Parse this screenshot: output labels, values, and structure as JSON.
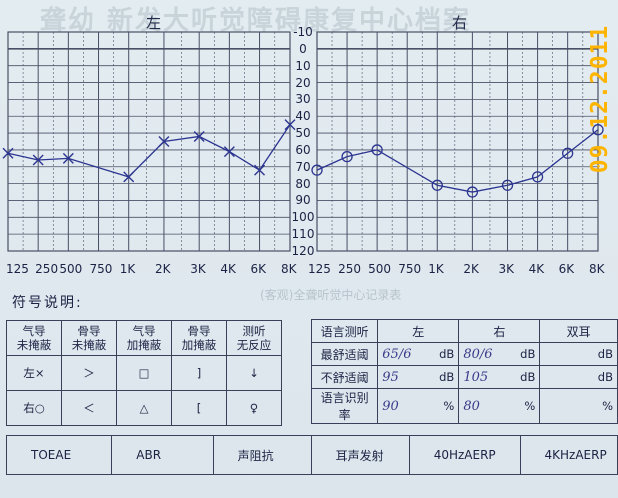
{
  "header_faint": "聋幼  新发大听觉障碍康复中心档案",
  "audiogram": {
    "left_title": "左",
    "right_title": "右",
    "y_ticks": [
      "-10",
      "0",
      "10",
      "20",
      "30",
      "40",
      "50",
      "60",
      "70",
      "80",
      "90",
      "100",
      "110",
      "120"
    ],
    "left_x_ticks": [
      "125",
      "250",
      "500",
      "750",
      "1K",
      "2K",
      "3K",
      "4K",
      "6K",
      "8K"
    ],
    "right_x_ticks": [
      "125",
      "250",
      "500",
      "750",
      "1K",
      "2K",
      "3K",
      "4K",
      "6K",
      "8K"
    ],
    "colors": {
      "grid": "#4a4f66",
      "pen": "#2c3590"
    }
  },
  "chart_data": [
    {
      "type": "line",
      "title": "左",
      "x": [
        "125",
        "250",
        "500",
        "1K",
        "2K",
        "3K",
        "4K",
        "6K",
        "8K"
      ],
      "ylim": [
        -10,
        120
      ],
      "y_inverted": true,
      "series": [
        {
          "name": "左×",
          "values": [
            62,
            66,
            65,
            76,
            55,
            52,
            61,
            72,
            45
          ]
        }
      ]
    },
    {
      "type": "line",
      "title": "右",
      "x": [
        "125",
        "250",
        "500",
        "1K",
        "2K",
        "3K",
        "4K",
        "6K",
        "8K"
      ],
      "ylim": [
        -10,
        120
      ],
      "y_inverted": true,
      "series": [
        {
          "name": "右○",
          "values": [
            72,
            64,
            60,
            81,
            85,
            81,
            76,
            62,
            48
          ]
        }
      ]
    }
  ],
  "symbols": {
    "heading": "符号说明:",
    "headers": [
      "",
      "气导\n未掩蔽",
      "骨导\n未掩蔽",
      "气导\n加掩蔽",
      "骨导\n加掩蔽",
      "测听\n无反应"
    ],
    "rows": [
      [
        "左×",
        "＞",
        "□",
        "]",
        "↓"
      ],
      [
        "右○",
        "＜",
        "△",
        "[",
        "♀"
      ]
    ]
  },
  "speech": {
    "headers": [
      "语言测听",
      "左",
      "右",
      "双耳"
    ],
    "rows": [
      {
        "label": "最舒适阈",
        "left": "65/6",
        "left_unit": "dB",
        "right": "80/6",
        "right_unit": "dB",
        "both": "",
        "both_unit": "dB"
      },
      {
        "label": "不舒适阈",
        "left": "95",
        "left_unit": "dB",
        "right": "105",
        "right_unit": "dB",
        "both": "",
        "both_unit": "dB"
      },
      {
        "label": "语言识别率",
        "left": "90",
        "left_unit": "%",
        "right": "80",
        "right_unit": "%",
        "both": "",
        "both_unit": "%"
      }
    ]
  },
  "tests": [
    "TOEAE",
    "ABR",
    "声阻抗",
    "耳声发射",
    "40HzAERP",
    "4KHzAERP"
  ],
  "date_stamp": "09.12.2011",
  "faint_mid": "(客观)全聋听觉中心记录表"
}
